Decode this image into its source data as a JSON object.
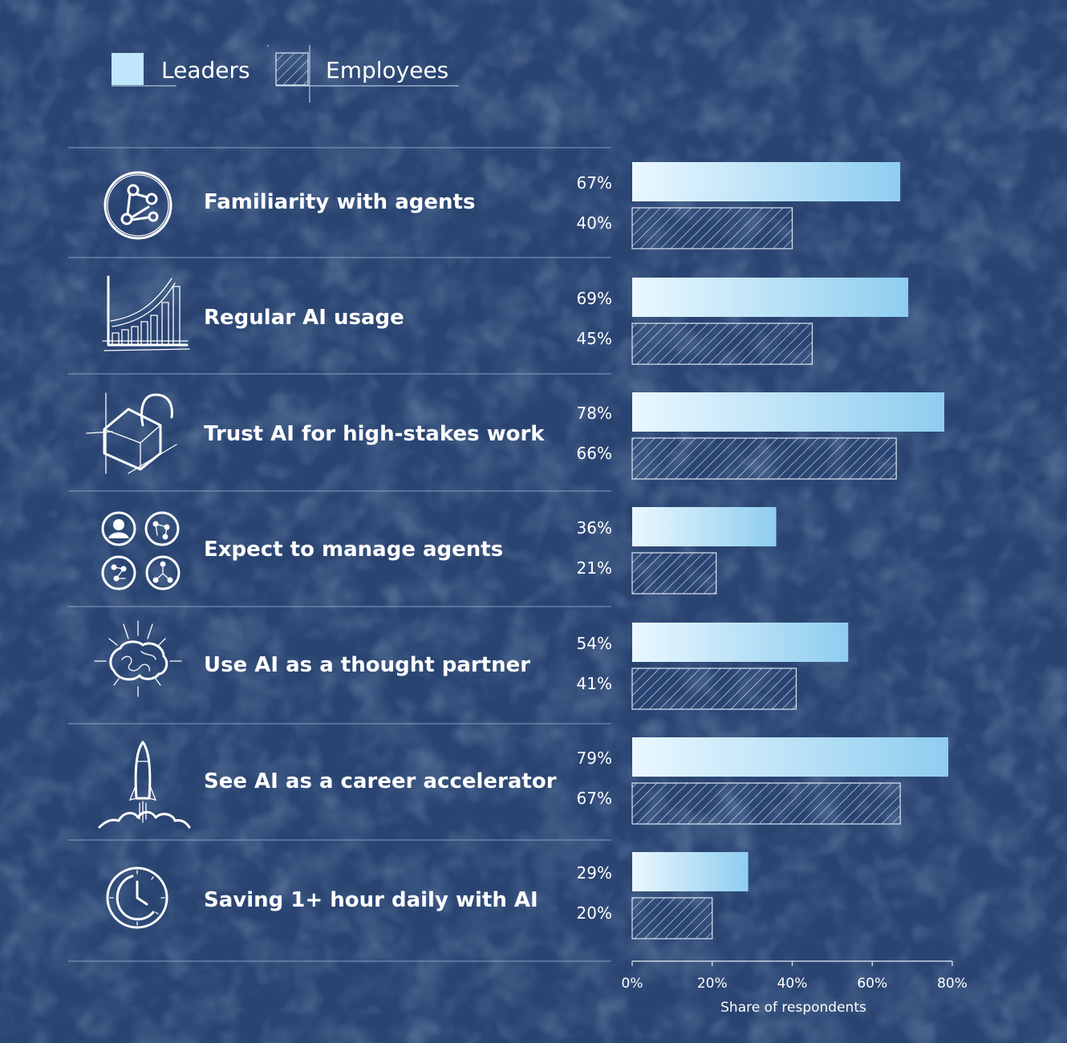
{
  "legend": {
    "leaders_label": "Leaders",
    "employees_label": "Employees"
  },
  "colors": {
    "background": "#2a4472",
    "leaders_start": "#eaf8ff",
    "leaders_end": "#8ecdef",
    "employees_hatch": "#dbe6f5"
  },
  "chart_data": {
    "type": "bar",
    "orientation": "horizontal",
    "categories": [
      "Familiarity with agents",
      "Regular AI usage",
      "Trust AI for high-stakes work",
      "Expect to manage agents",
      "Use AI as a thought partner",
      "See AI as a career accelerator",
      "Saving 1+ hour daily with AI"
    ],
    "category_icons": [
      "network-icon",
      "bar-growth-icon",
      "open-lock-icon",
      "agents-grid-icon",
      "brain-icon",
      "rocket-icon",
      "clock-icon"
    ],
    "series": [
      {
        "name": "Leaders",
        "values": [
          67,
          69,
          78,
          36,
          54,
          79,
          29
        ]
      },
      {
        "name": "Employees",
        "values": [
          40,
          45,
          66,
          21,
          41,
          67,
          20
        ]
      }
    ],
    "value_suffix": "%",
    "xlabel": "Share of respondents",
    "xlim": [
      0,
      80
    ],
    "xticks": [
      "0%",
      "20%",
      "40%",
      "60%",
      "80%"
    ],
    "legend_position": "top-left",
    "grid": false
  }
}
